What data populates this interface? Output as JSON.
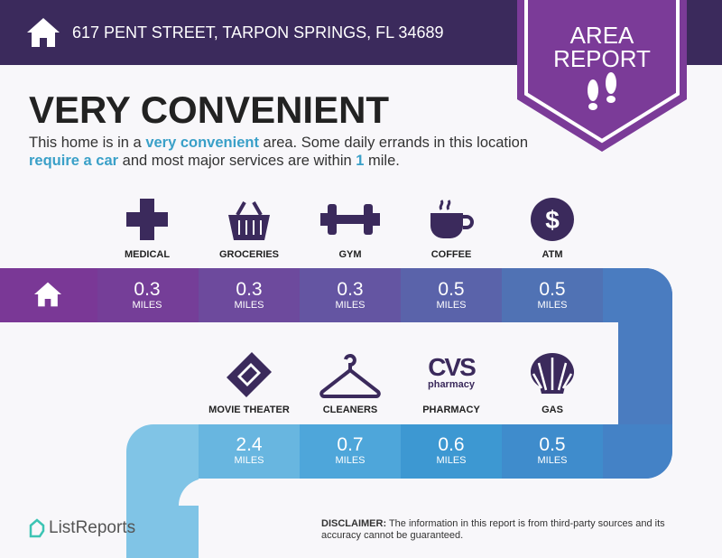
{
  "header": {
    "address": "617 PENT STREET, TARPON SPRINGS, FL 34689",
    "badge_line1": "AREA",
    "badge_line2": "REPORT"
  },
  "title": "VERY CONVENIENT",
  "description": {
    "p1": "This home is in a ",
    "h1": "very convenient",
    "p2": " area. Some daily errands in this location ",
    "h2": "require a car",
    "p3": " and most major services are within ",
    "h3": "1",
    "p4": " mile."
  },
  "row1": [
    {
      "label": "MEDICAL",
      "value": "0.3",
      "unit": "MILES",
      "icon": "medical-cross-icon"
    },
    {
      "label": "GROCERIES",
      "value": "0.3",
      "unit": "MILES",
      "icon": "grocery-basket-icon"
    },
    {
      "label": "GYM",
      "value": "0.3",
      "unit": "MILES",
      "icon": "dumbbell-icon"
    },
    {
      "label": "COFFEE",
      "value": "0.5",
      "unit": "MILES",
      "icon": "coffee-cup-icon"
    },
    {
      "label": "ATM",
      "value": "0.5",
      "unit": "MILES",
      "icon": "dollar-icon"
    }
  ],
  "row2": [
    {
      "label": "MOVIE THEATER",
      "value": "2.4",
      "unit": "MILES",
      "icon": "ticket-icon"
    },
    {
      "label": "CLEANERS",
      "value": "0.7",
      "unit": "MILES",
      "icon": "hanger-icon"
    },
    {
      "label": "PHARMACY",
      "value": "0.6",
      "unit": "MILES",
      "icon": "cvs-logo-icon",
      "logo_text": "CVS",
      "logo_sub": "pharmacy"
    },
    {
      "label": "GAS",
      "value": "0.5",
      "unit": "MILES",
      "icon": "shell-icon"
    }
  ],
  "footer": {
    "brand": "ListReports",
    "disclaimer_label": "DISCLAIMER:",
    "disclaimer": " The information in this report is from third-party sources and its accuracy cannot be guaranteed."
  },
  "colors": {
    "header": "#3b2a5c",
    "badge": "#7b3b98",
    "highlight": "#3aa0c8",
    "icon": "#3b2a5c"
  }
}
